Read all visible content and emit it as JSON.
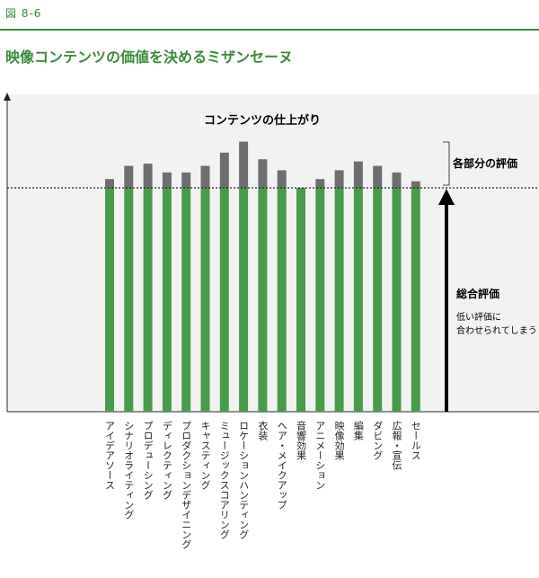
{
  "figure": {
    "label": "図 8-6",
    "title": "映像コンテンツの価値を決めるミザンセーヌ"
  },
  "chart_data": {
    "type": "bar",
    "title": "コンテンツの仕上がり",
    "categories": [
      "アイデアソース",
      "シナリオライティング",
      "プロデューシング",
      "ディレクティング",
      "プロダクションデザイニング",
      "キャスティング",
      "ミュージックスコアリング",
      "ロケーションハンティング",
      "衣装",
      "ヘア・メイクアップ",
      "音響効果",
      "アニメーション",
      "映像効果",
      "編集",
      "ダビング",
      "広報・宣伝",
      "セールス"
    ],
    "series": [
      {
        "name": "総合評価",
        "values": [
          100,
          100,
          100,
          100,
          100,
          100,
          100,
          100,
          100,
          100,
          100,
          100,
          100,
          100,
          100,
          100,
          100
        ]
      },
      {
        "name": "各部分の評価",
        "values": [
          4,
          10,
          11,
          7,
          7,
          10,
          16,
          21,
          13,
          8,
          0,
          4,
          8,
          12,
          10,
          7,
          3
        ]
      }
    ],
    "colors": {
      "base": "#4a9a4c",
      "top": "#6e6e6e",
      "background": "#f2f2f2",
      "accent": "#3a8a3a"
    },
    "annotations": {
      "brace_label": "各部分の評価",
      "arrow_label": "総合評価",
      "arrow_note_line1": "低い評価に",
      "arrow_note_line2": "合わせられてしまう"
    }
  }
}
